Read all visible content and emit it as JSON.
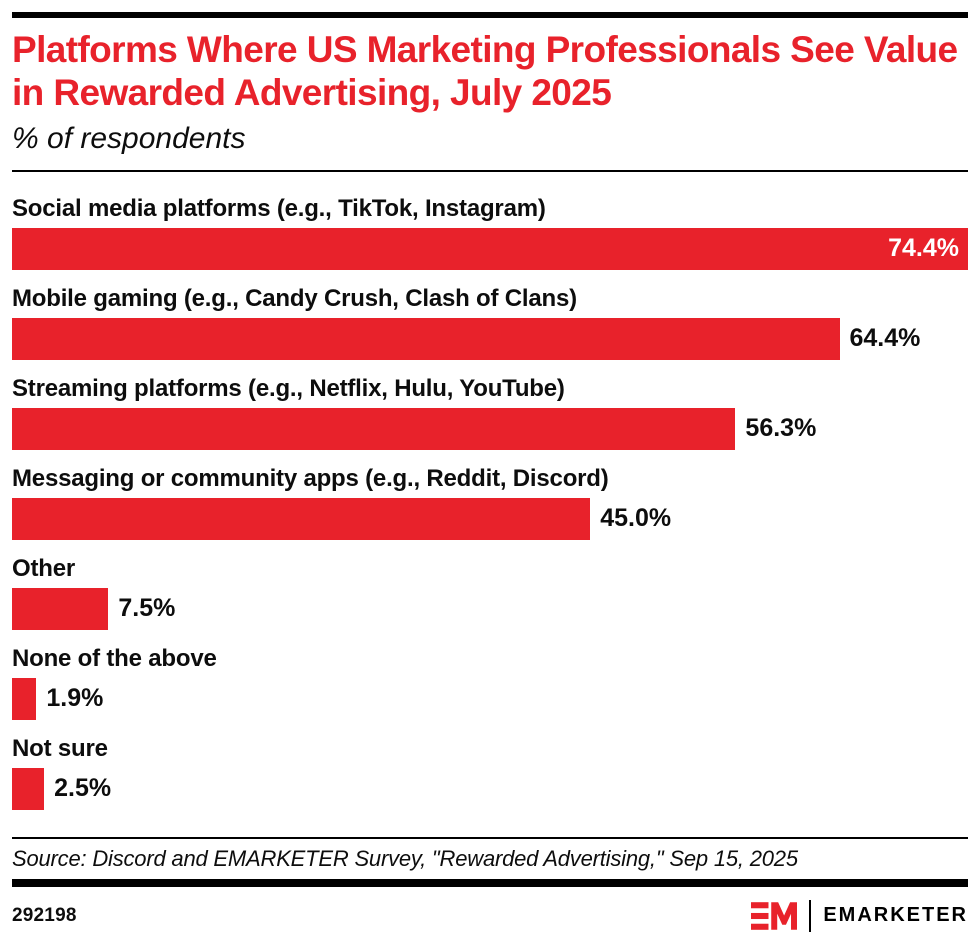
{
  "header": {
    "title": "Platforms Where US Marketing Professionals See Value in Rewarded Advertising, July 2025",
    "subtitle": "% of respondents"
  },
  "chart_data": {
    "type": "bar",
    "orientation": "horizontal",
    "title": "Platforms Where US Marketing Professionals See Value in Rewarded Advertising, July 2025",
    "xlabel": "% of respondents",
    "ylabel": "",
    "xlim": [
      0,
      74.4
    ],
    "grid": false,
    "axis_visible": false,
    "categories": [
      "Social media platforms (e.g., TikTok, Instagram)",
      "Mobile gaming (e.g., Candy Crush, Clash of Clans)",
      "Streaming platforms (e.g., Netflix, Hulu, YouTube)",
      "Messaging or community apps (e.g., Reddit, Discord)",
      "Other",
      "None of the above",
      "Not sure"
    ],
    "values": [
      74.4,
      64.4,
      56.3,
      45.0,
      7.5,
      1.9,
      2.5
    ],
    "value_labels": [
      "74.4%",
      "64.4%",
      "56.3%",
      "45.0%",
      "7.5%",
      "1.9%",
      "2.5%"
    ],
    "bar_color": "#E8222B",
    "value_label_inside_color": "#FFFFFF",
    "value_label_outside_color": "#0d0d0d"
  },
  "footer": {
    "source": "Source: Discord and EMARKETER Survey, \"Rewarded Advertising,\" Sep 15, 2025",
    "chart_id": "292198",
    "brand": "EMARKETER"
  },
  "colors": {
    "red": "#E8222B",
    "black": "#000000"
  }
}
